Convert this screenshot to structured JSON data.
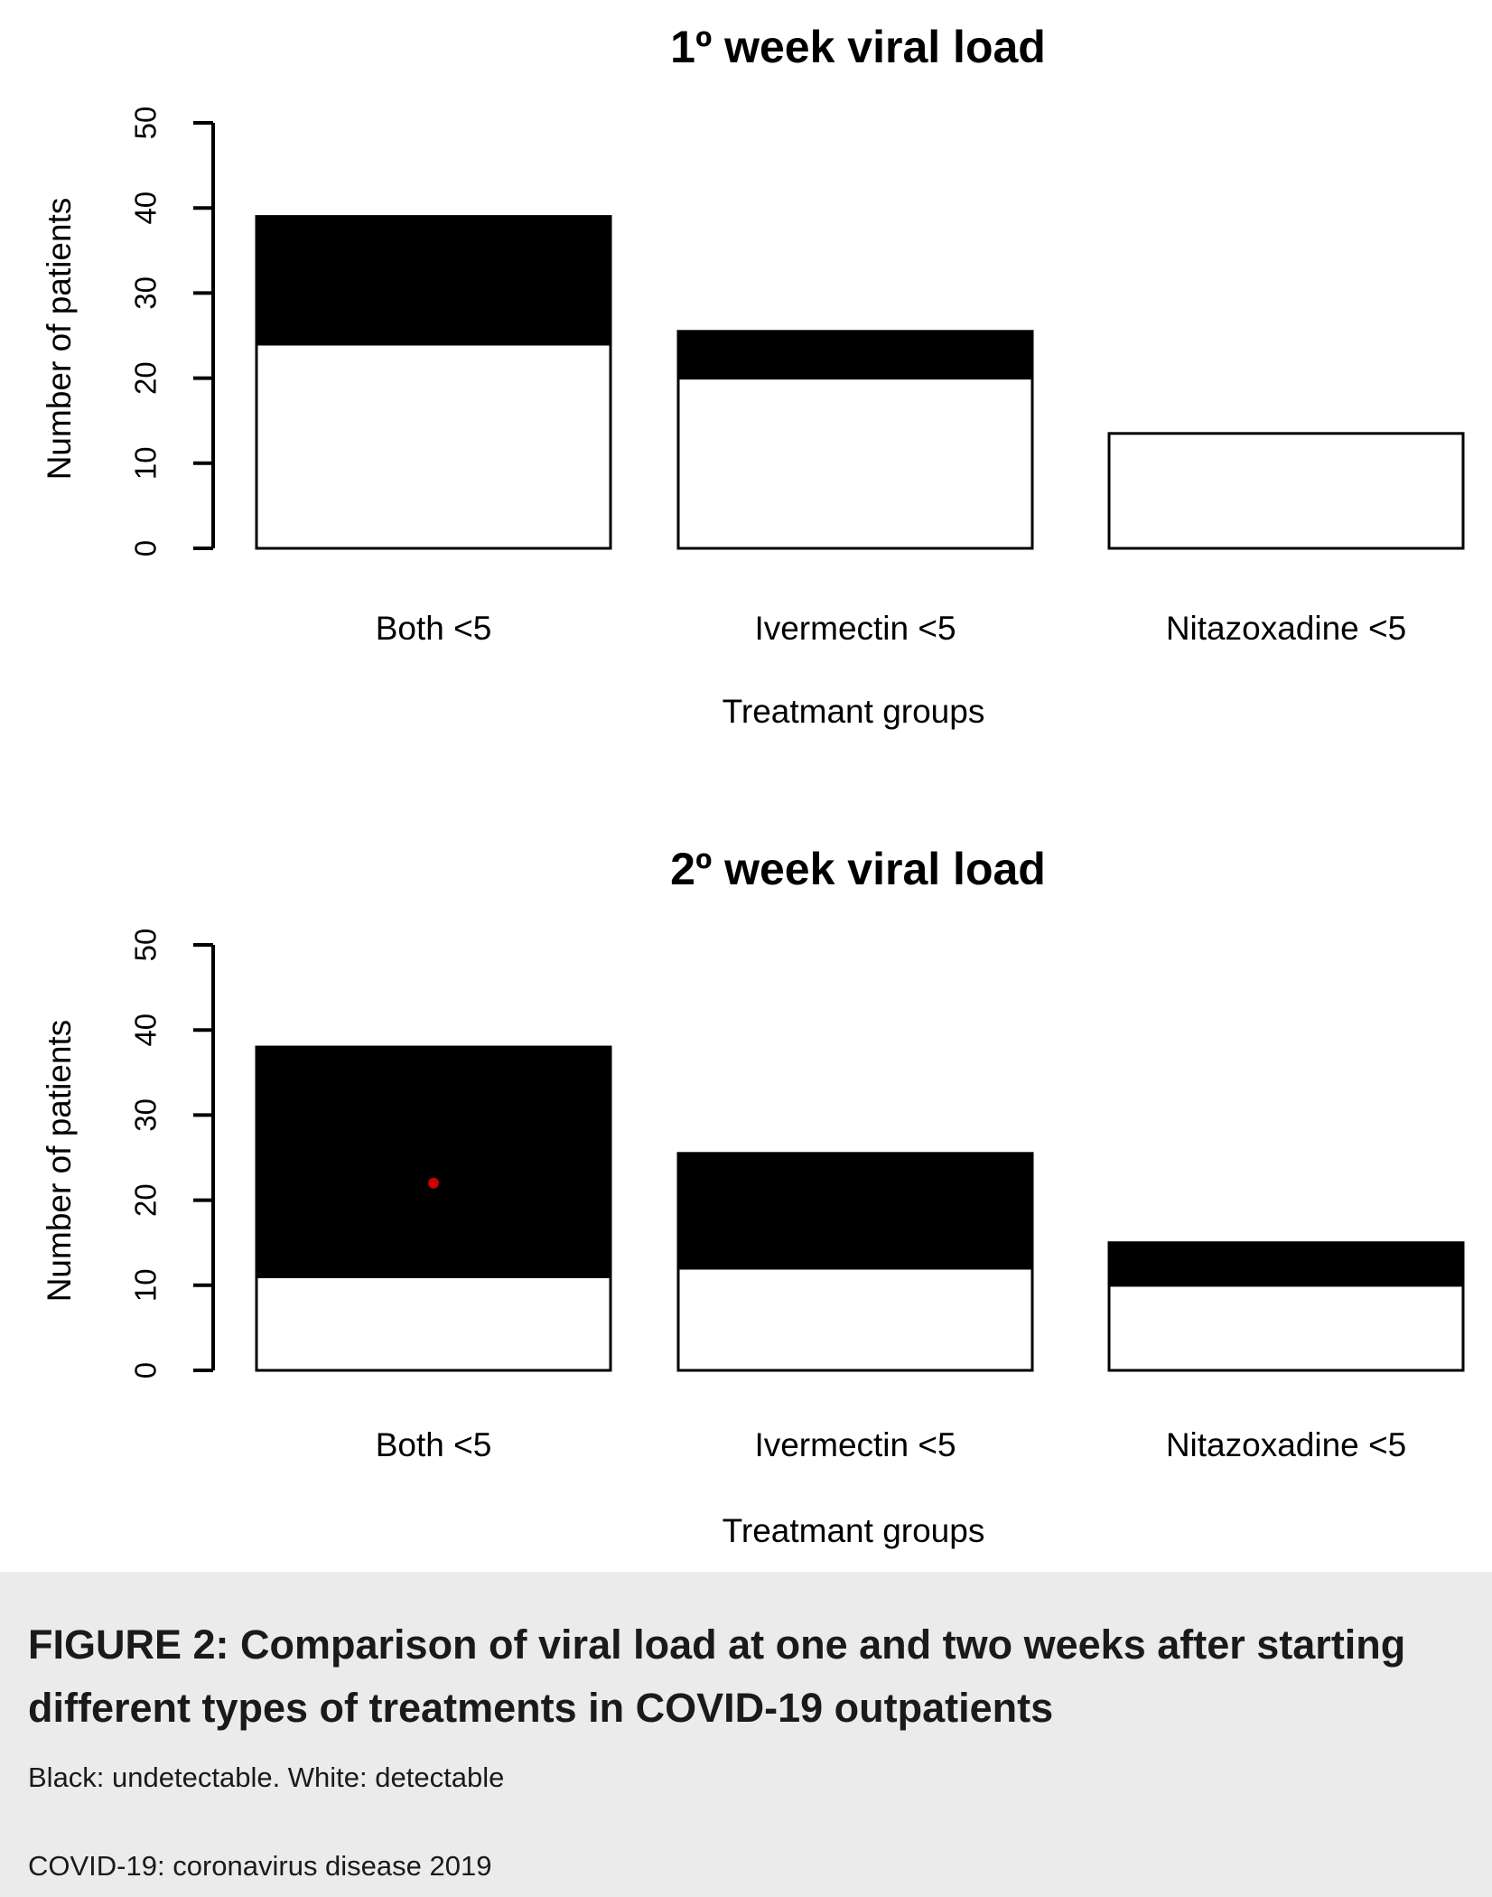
{
  "chart_data": [
    {
      "type": "bar",
      "stacked": true,
      "title": "1º week viral load",
      "xlabel": "Treatmant groups",
      "ylabel": "Number of patients",
      "ylim": [
        0,
        50
      ],
      "yticks": [
        0,
        10,
        20,
        30,
        40,
        50
      ],
      "categories": [
        "Both <5",
        "Ivermectin <5",
        "Nitazoxadine <5"
      ],
      "series": [
        {
          "color": "#ffffff",
          "values": [
            24,
            20,
            13.5
          ]
        },
        {
          "color": "#000000",
          "values": [
            15,
            5.5,
            0
          ]
        }
      ],
      "totals": [
        39,
        25.5,
        13.5
      ]
    },
    {
      "type": "bar",
      "stacked": true,
      "title": "2º week viral load",
      "xlabel": "Treatmant groups",
      "ylabel": "Number of patients",
      "ylim": [
        0,
        50
      ],
      "yticks": [
        0,
        10,
        20,
        30,
        40,
        50
      ],
      "categories": [
        "Both <5",
        "Ivermectin <5",
        "Nitazoxadine <5"
      ],
      "series": [
        {
          "color": "#ffffff",
          "values": [
            11,
            12,
            10
          ]
        },
        {
          "color": "#000000",
          "values": [
            27,
            13.5,
            5
          ]
        }
      ],
      "totals": [
        38,
        25.5,
        15
      ],
      "marker": {
        "category": "Both <5",
        "y": 22,
        "color": "#cc0000"
      }
    }
  ],
  "caption": {
    "title": "FIGURE 2: Comparison of viral load at one and two weeks after starting different types of treatments in COVID-19 outpatients",
    "note1": "Black: undetectable. White: detectable",
    "note2": "COVID-19: coronavirus disease 2019"
  },
  "colors": {
    "panel_background": "#ebebeb",
    "detectable": "#ffffff",
    "undetectable": "#000000",
    "marker": "#cc0000"
  }
}
